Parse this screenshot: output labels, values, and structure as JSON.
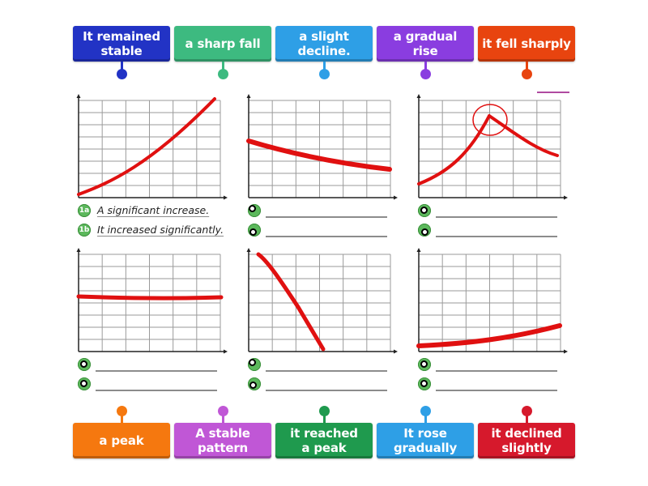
{
  "top_tiles": [
    {
      "label_lines": [
        "It remained",
        "stable"
      ],
      "color": "#2233c5",
      "pin_color": "#2233c5"
    },
    {
      "label_lines": [
        "a sharp fall"
      ],
      "color": "#3dba80",
      "pin_color": "#3dba80"
    },
    {
      "label_lines": [
        "a slight",
        "decline."
      ],
      "color": "#2e9fe6",
      "pin_color": "#2e9fe6"
    },
    {
      "label_lines": [
        "a gradual rise"
      ],
      "color": "#8a3de0",
      "pin_color": "#8a3de0"
    },
    {
      "label_lines": [
        "it fell sharply"
      ],
      "color": "#e8440f",
      "pin_color": "#e8440f"
    }
  ],
  "bottom_tiles": [
    {
      "label_lines": [
        "a peak"
      ],
      "color": "#f5780f",
      "pin_color": "#f5780f"
    },
    {
      "label_lines": [
        "A stable",
        "pattern"
      ],
      "color": "#c057d6",
      "pin_color": "#c057d6"
    },
    {
      "label_lines": [
        "it reached",
        "a peak"
      ],
      "color": "#1f9a4e",
      "pin_color": "#1f9a4e"
    },
    {
      "label_lines": [
        "It rose",
        "gradually"
      ],
      "color": "#2e9fe6",
      "pin_color": "#2e9fe6"
    },
    {
      "label_lines": [
        "it declined",
        "slightly"
      ],
      "color": "#d6192c",
      "pin_color": "#d6192c"
    }
  ],
  "charts": [
    {
      "id": "1",
      "answers": [
        {
          "marker": "1a",
          "text": "A significant increase.",
          "filled": true
        },
        {
          "marker": "1b",
          "text": "It increased significantly.",
          "filled": true
        }
      ]
    },
    {
      "id": "2",
      "answers": [
        {
          "marker": "2a",
          "text": "",
          "filled": false
        },
        {
          "marker": "2b",
          "text": "",
          "filled": false
        }
      ]
    },
    {
      "id": "3",
      "answers": [
        {
          "marker": "3a",
          "text": "",
          "filled": false
        },
        {
          "marker": "3b",
          "text": "",
          "filled": false
        }
      ]
    },
    {
      "id": "4",
      "answers": [
        {
          "marker": "4a",
          "text": "",
          "filled": false
        },
        {
          "marker": "4b",
          "text": "",
          "filled": false
        }
      ]
    },
    {
      "id": "5",
      "answers": [
        {
          "marker": "5a",
          "text": "",
          "filled": false
        },
        {
          "marker": "5b",
          "text": "",
          "filled": false
        }
      ]
    },
    {
      "id": "6",
      "answers": [
        {
          "marker": "6a",
          "text": "",
          "filled": false
        },
        {
          "marker": "6b",
          "text": "",
          "filled": false
        }
      ]
    }
  ],
  "colors": {
    "line": "#e01010",
    "grid": "#9a9a9a",
    "axis": "#222222",
    "marker_green": "#5cb85c",
    "answer_line": "#8c8c8c"
  },
  "chart_data": [
    {
      "type": "line",
      "title": "Chart 1 - significant increase",
      "x": [
        0,
        1,
        2,
        3,
        4,
        5,
        6
      ],
      "values": [
        0.3,
        1.0,
        2.0,
        3.3,
        4.9,
        6.6,
        8.3
      ],
      "ylim": [
        0,
        8
      ],
      "grid": true
    },
    {
      "type": "line",
      "title": "Chart 2 - slight decline",
      "x": [
        0,
        1,
        2,
        3,
        4,
        5,
        6
      ],
      "values": [
        4.8,
        4.3,
        3.8,
        3.4,
        3.0,
        2.7,
        2.4
      ],
      "ylim": [
        0,
        8
      ],
      "grid": true
    },
    {
      "type": "line",
      "title": "Chart 3 - peak",
      "x": [
        0,
        1,
        2,
        3,
        4,
        5,
        6
      ],
      "values": [
        1.2,
        2.2,
        3.9,
        6.1,
        4.8,
        3.9,
        3.4
      ],
      "ylim": [
        0,
        8
      ],
      "grid": true,
      "annotation": "circle around peak at x=3"
    },
    {
      "type": "line",
      "title": "Chart 4 - stable",
      "x": [
        0,
        1,
        2,
        3,
        4,
        5,
        6
      ],
      "values": [
        4.5,
        4.5,
        4.45,
        4.4,
        4.45,
        4.45,
        4.45
      ],
      "ylim": [
        0,
        8
      ],
      "grid": true
    },
    {
      "type": "line",
      "title": "Chart 5 - sharp fall",
      "x": [
        0.4,
        1,
        2,
        3.2
      ],
      "values": [
        8.0,
        7.0,
        4.0,
        0.2
      ],
      "ylim": [
        0,
        8
      ],
      "grid": true
    },
    {
      "type": "line",
      "title": "Chart 6 - gradual rise",
      "x": [
        0,
        1,
        2,
        3,
        4,
        5,
        6
      ],
      "values": [
        0.5,
        0.6,
        0.8,
        1.0,
        1.3,
        1.7,
        2.1
      ],
      "ylim": [
        0,
        8
      ],
      "grid": true
    }
  ]
}
